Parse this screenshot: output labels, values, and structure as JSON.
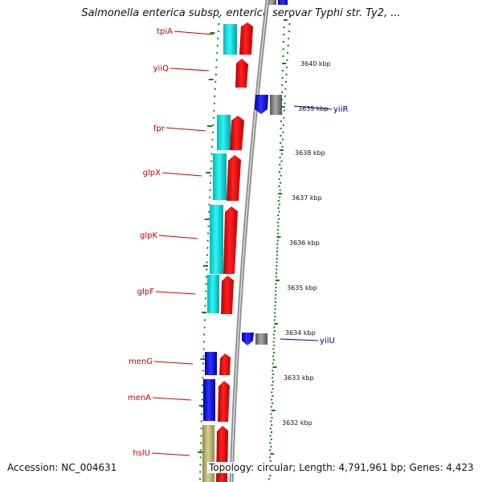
{
  "header": {
    "title": "Salmonella enterica subsp. enterica serovar Typhi str. Ty2, ..."
  },
  "footer": {
    "accession": "Accession: NC_004631",
    "topology": "Topology: circular;",
    "length": "Length: 4,791,961 bp;",
    "genes": "Genes: 4,423"
  },
  "ruler": {
    "ticks": [
      {
        "label": "3640 kbp",
        "kbp": 3640
      },
      {
        "label": "3639 kbp",
        "kbp": 3639
      },
      {
        "label": "3638 kbp",
        "kbp": 3638
      },
      {
        "label": "3637 kbp",
        "kbp": 3637
      },
      {
        "label": "3636 kbp",
        "kbp": 3636
      },
      {
        "label": "3635 kbp",
        "kbp": 3635
      },
      {
        "label": "3634 kbp",
        "kbp": 3634
      },
      {
        "label": "3633 kbp",
        "kbp": 3633
      },
      {
        "label": "3632 kbp",
        "kbp": 3632
      }
    ]
  },
  "genes_left": [
    {
      "name": "tpiA",
      "color": "#cc0000"
    },
    {
      "name": "yiiQ",
      "color": "#cc0000"
    },
    {
      "name": "fpr",
      "color": "#cc0000"
    },
    {
      "name": "glpX",
      "color": "#cc0000"
    },
    {
      "name": "glpK",
      "color": "#cc0000"
    },
    {
      "name": "glpF",
      "color": "#cc0000"
    },
    {
      "name": "menG",
      "color": "#cc0000"
    },
    {
      "name": "menA",
      "color": "#cc0000"
    },
    {
      "name": "hslU",
      "color": "#cc0000"
    }
  ],
  "genes_right": [
    {
      "name": "yiiR",
      "color": "#000099"
    },
    {
      "name": "yiiU",
      "color": "#000099"
    }
  ],
  "colors": {
    "forward_cds": "#ff0000",
    "reverse_cds": "#0000ff",
    "cog_cyan": "#00e5e5",
    "cog_blue": "#1a1aff",
    "cog_khaki": "#bdb46e",
    "gray_cds": "#808080",
    "backbone": "#999999",
    "tick_green": "#1a7a1a"
  }
}
